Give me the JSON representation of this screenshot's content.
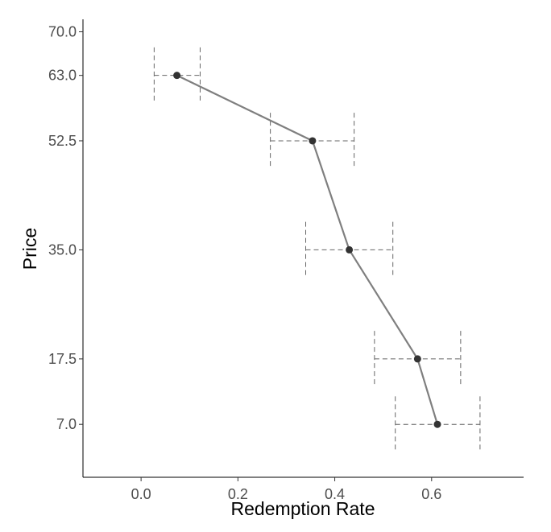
{
  "chart_data": {
    "type": "scatter",
    "xlabel": "Redemption Rate",
    "ylabel": "Price",
    "xlim": [
      -0.12,
      0.79
    ],
    "ylim": [
      -1.5,
      72
    ],
    "x_ticks": [
      0.0,
      0.2,
      0.4,
      0.6
    ],
    "x_tick_labels": [
      "0.0",
      "0.2",
      "0.4",
      "0.6"
    ],
    "y_ticks": [
      7.0,
      17.5,
      35.0,
      52.5,
      63.0,
      70.0
    ],
    "y_tick_labels": [
      "7.0",
      "17.5",
      "35.0",
      "52.5",
      "63.0",
      "70.0"
    ],
    "grid": false,
    "series": [
      {
        "points": [
          {
            "x": 0.074,
            "y": 63.0,
            "xmin": 0.027,
            "xmax": 0.122,
            "ymin": 58.5,
            "ymax": 67.5
          },
          {
            "x": 0.354,
            "y": 52.5,
            "xmin": 0.267,
            "xmax": 0.44,
            "ymin": 48.0,
            "ymax": 57.0
          },
          {
            "x": 0.43,
            "y": 35.0,
            "xmin": 0.34,
            "xmax": 0.52,
            "ymin": 30.5,
            "ymax": 39.5
          },
          {
            "x": 0.571,
            "y": 17.5,
            "xmin": 0.482,
            "xmax": 0.66,
            "ymin": 13.0,
            "ymax": 22.0
          },
          {
            "x": 0.612,
            "y": 7.0,
            "xmin": 0.525,
            "xmax": 0.7,
            "ymin": 2.5,
            "ymax": 11.5
          }
        ]
      }
    ],
    "colors": {
      "line": "#7f7f7f",
      "point": "#333333",
      "error_bar": "#666666"
    }
  }
}
